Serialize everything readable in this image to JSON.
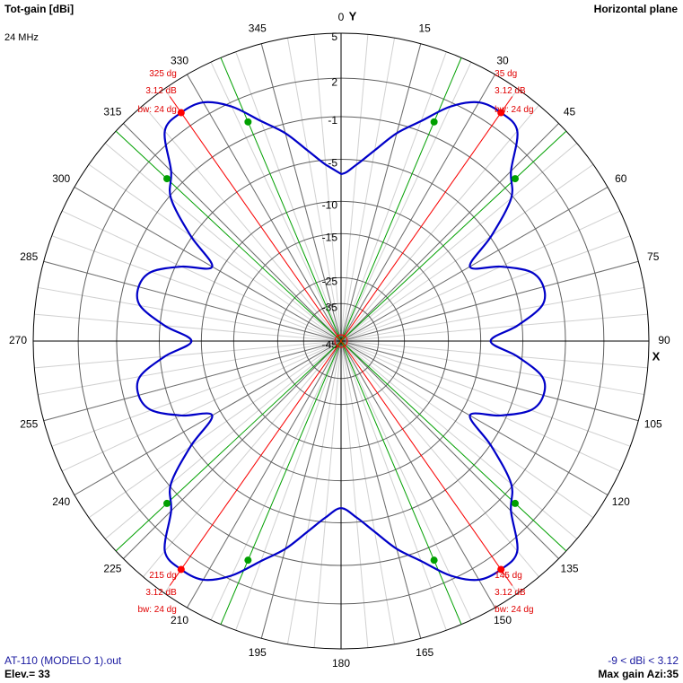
{
  "chart_data": {
    "type": "polar",
    "title": "Tot-gain [dBi]",
    "subtitle": "24 MHz",
    "plane": "Horizontal plane",
    "y_axis_label": "Y",
    "x_axis_label": "X",
    "footer_left": [
      "AT-110 (MODELO 1).out",
      "Elev.= 33"
    ],
    "footer_right": [
      "-9 < dBi < 3.12",
      "Max gain Azi:35"
    ],
    "x": [
      0,
      5,
      10,
      15,
      20,
      25,
      30,
      35,
      40,
      45,
      50,
      55,
      60,
      65,
      70,
      75,
      80,
      85,
      90,
      95,
      100,
      105,
      110,
      115,
      120,
      125,
      130,
      135,
      140,
      145,
      150,
      155,
      160,
      165,
      170,
      175,
      180,
      185,
      190,
      195,
      200,
      205,
      210,
      215,
      220,
      225,
      230,
      235,
      240,
      245,
      250,
      255,
      260,
      265,
      270,
      275,
      280,
      285,
      290,
      295,
      300,
      305,
      310,
      315,
      320,
      325,
      330,
      335,
      340,
      345,
      350,
      355
    ],
    "values": [
      -6.6,
      -5.5,
      -3.8,
      -1.8,
      -0.2,
      1.7,
      2.9,
      3.12,
      2.8,
      0.3,
      -1.2,
      -4.8,
      -8.8,
      -5.6,
      -3.0,
      -2.3,
      -2.8,
      -5.5,
      -8.7,
      -5.5,
      -2.8,
      -2.3,
      -3.0,
      -5.6,
      -8.8,
      -4.8,
      -1.2,
      0.3,
      2.8,
      3.12,
      2.9,
      1.7,
      -0.2,
      -1.8,
      -3.8,
      -5.5,
      -6.6,
      -5.5,
      -3.8,
      -1.8,
      -0.2,
      1.7,
      2.9,
      3.12,
      2.8,
      0.3,
      -1.2,
      -4.8,
      -8.8,
      -5.6,
      -3.0,
      -2.3,
      -2.8,
      -5.5,
      -8.7,
      -5.5,
      -2.8,
      -2.3,
      -3.0,
      -5.6,
      -8.8,
      -4.8,
      -1.2,
      0.3,
      2.8,
      3.12,
      2.9,
      1.7,
      -0.2,
      -1.8,
      -3.8,
      -5.5
    ],
    "color": "#0000c8",
    "rlim": [
      -45,
      5
    ],
    "rticks": [
      5,
      2,
      -1,
      -5,
      -10,
      -15,
      -25,
      -35,
      -45
    ],
    "angle_ticks": [
      0,
      15,
      30,
      45,
      60,
      75,
      90,
      105,
      120,
      135,
      150,
      165,
      180,
      195,
      210,
      225,
      240,
      255,
      270,
      285,
      300,
      315,
      330,
      345
    ],
    "marker_color": "#ff0000",
    "half_power_color": "#00a000",
    "grid": true,
    "markers": [
      {
        "azimuth": 35,
        "azimuth_label": "35 dg",
        "gain": 3.12,
        "gain_label": "3.12 dB",
        "beamwidth_label": "bw: 24 dg",
        "half_power": [
          23,
          47
        ],
        "half_power_gain": 0.12
      },
      {
        "azimuth": 145,
        "azimuth_label": "145 dg",
        "gain": 3.12,
        "gain_label": "3.12 dB",
        "beamwidth_label": "bw: 24 dg",
        "half_power": [
          133,
          157
        ],
        "half_power_gain": 0.12
      },
      {
        "azimuth": 215,
        "azimuth_label": "215 dg",
        "gain": 3.12,
        "gain_label": "3.12 dB",
        "beamwidth_label": "bw: 24 dg",
        "half_power": [
          203,
          227
        ],
        "half_power_gain": 0.12
      },
      {
        "azimuth": 325,
        "azimuth_label": "325 dg",
        "gain": 3.12,
        "gain_label": "3.12 dB",
        "beamwidth_label": "bw: 24 dg",
        "half_power": [
          313,
          337
        ],
        "half_power_gain": 0.12
      }
    ]
  }
}
